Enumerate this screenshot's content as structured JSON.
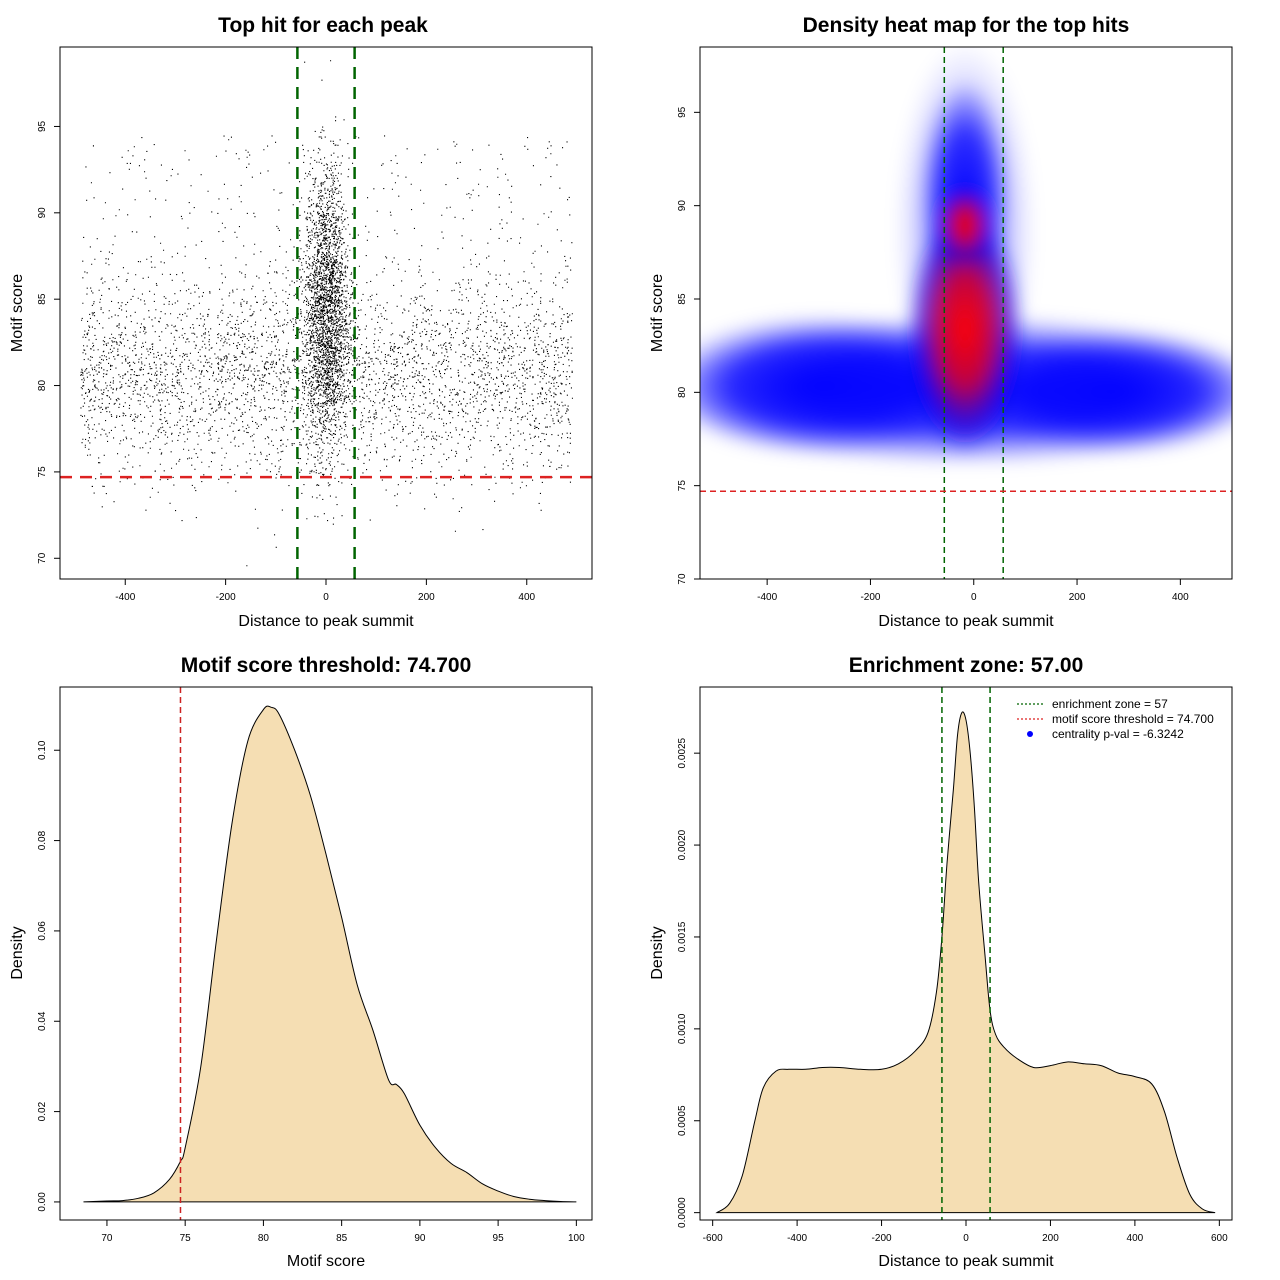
{
  "chart_data": [
    {
      "type": "scatter",
      "title": "Top hit for each peak",
      "xlabel": "Distance to peak summit",
      "ylabel": "Motif score",
      "xlim": [
        -530,
        530
      ],
      "ylim": [
        68.8,
        99.6
      ],
      "xticks": [
        -400,
        -200,
        0,
        200,
        400
      ],
      "yticks": [
        70,
        75,
        80,
        85,
        90,
        95
      ],
      "xtick_labels": [
        "-400",
        "-200",
        "0",
        "200",
        "400"
      ],
      "ytick_labels": [
        "70",
        "75",
        "80",
        "85",
        "90",
        "95"
      ],
      "hline": 74.7,
      "vlines": [
        -57,
        57
      ],
      "hline_color": "#dd2222",
      "vline_color": "#006400",
      "point_color": "#000000",
      "background_cloud": {
        "x_range": [
          -490,
          490
        ],
        "y_center": 80.5,
        "y_sd": 2.9,
        "n": 11000
      },
      "central_cluster": {
        "x_center": 0,
        "x_sd": 22,
        "y_center": 84.5,
        "y_sd": 4.0,
        "n": 2600
      }
    },
    {
      "type": "heatmap",
      "title": "Density heat map for the top hits",
      "xlabel": "Distance to peak summit",
      "ylabel": "Motif score",
      "xlim": [
        -530,
        500
      ],
      "ylim": [
        70,
        98.5
      ],
      "xticks": [
        -400,
        -200,
        0,
        200,
        400
      ],
      "yticks": [
        70,
        75,
        80,
        85,
        90,
        95
      ],
      "xtick_labels": [
        "-400",
        "-200",
        "0",
        "200",
        "400"
      ],
      "ytick_labels": [
        "70",
        "75",
        "80",
        "85",
        "90",
        "95"
      ],
      "hline": 74.7,
      "vlines": [
        -57,
        57
      ],
      "colormap": [
        "#ffffff",
        "#0000ff",
        "#ff0000"
      ],
      "peak": {
        "x": 0,
        "y": 82.7
      }
    },
    {
      "type": "area",
      "title": "Motif score threshold: 74.700",
      "xlabel": "Motif score",
      "ylabel": "Density",
      "xlim": [
        67,
        101
      ],
      "ylim": [
        -0.004,
        0.114
      ],
      "xticks": [
        70,
        75,
        80,
        85,
        90,
        95,
        100
      ],
      "yticks": [
        0,
        0.02,
        0.04,
        0.06,
        0.08,
        0.1
      ],
      "xtick_labels": [
        "70",
        "75",
        "80",
        "85",
        "90",
        "95",
        "100"
      ],
      "ytick_labels": [
        "0.00",
        "0.02",
        "0.04",
        "0.06",
        "0.08",
        "0.10"
      ],
      "vline": 74.7,
      "fill_color": "#f5deb3",
      "vline_color": "#cc2222",
      "x": [
        68.5,
        70,
        71,
        72,
        73,
        74,
        74.7,
        75,
        76,
        77,
        78,
        79,
        80,
        80.5,
        81,
        82,
        83,
        84,
        85,
        86,
        87,
        88,
        88.5,
        89,
        90,
        91,
        92,
        93,
        94,
        95,
        96,
        97,
        98,
        99,
        100
      ],
      "y": [
        0.0,
        0.0002,
        0.0003,
        0.0008,
        0.002,
        0.005,
        0.009,
        0.012,
        0.03,
        0.058,
        0.084,
        0.102,
        0.109,
        0.1095,
        0.108,
        0.1,
        0.09,
        0.077,
        0.063,
        0.048,
        0.038,
        0.027,
        0.026,
        0.024,
        0.017,
        0.012,
        0.0085,
        0.0065,
        0.004,
        0.0024,
        0.0012,
        0.0006,
        0.0003,
        0.0001,
        0.0
      ]
    },
    {
      "type": "area",
      "title": "Enrichment zone: 57.00",
      "xlabel": "Distance to peak summit",
      "ylabel": "Density",
      "xlim": [
        -630,
        630
      ],
      "ylim": [
        -4e-05,
        0.00286
      ],
      "xticks": [
        -600,
        -400,
        -200,
        0,
        200,
        400,
        600
      ],
      "yticks": [
        0,
        0.0005,
        0.001,
        0.0015,
        0.002,
        0.0025
      ],
      "xtick_labels": [
        "-600",
        "-400",
        "-200",
        "0",
        "200",
        "400",
        "600"
      ],
      "ytick_labels": [
        "0.0000",
        "0.0005",
        "0.0010",
        "0.0015",
        "0.0020",
        "0.0025"
      ],
      "vlines": [
        -57,
        57
      ],
      "fill_color": "#f5deb3",
      "vline_color": "#006400",
      "legend": [
        {
          "label": "enrichment zone = 57",
          "color": "#006400",
          "kind": "line"
        },
        {
          "label": "motif score threshold = 74.700",
          "color": "#dd2222",
          "kind": "line"
        },
        {
          "label": "centrality p-val = -6.3242",
          "color": "#0000ff",
          "kind": "point"
        }
      ],
      "legend_position": "top-right",
      "x": [
        -590,
        -560,
        -530,
        -500,
        -480,
        -450,
        -420,
        -380,
        -340,
        -300,
        -250,
        -200,
        -160,
        -120,
        -90,
        -70,
        -57,
        -45,
        -30,
        -20,
        -10,
        0,
        10,
        20,
        30,
        45,
        57,
        70,
        90,
        120,
        160,
        200,
        240,
        280,
        320,
        360,
        400,
        440,
        470,
        500,
        530,
        560,
        590
      ],
      "y": [
        0.0,
        5e-05,
        0.0002,
        0.0005,
        0.00068,
        0.00077,
        0.00078,
        0.00078,
        0.00079,
        0.00079,
        0.00078,
        0.00078,
        0.00081,
        0.00088,
        0.00098,
        0.0012,
        0.0015,
        0.0019,
        0.0023,
        0.0026,
        0.00272,
        0.00268,
        0.0025,
        0.0022,
        0.0018,
        0.0014,
        0.0011,
        0.00097,
        0.0009,
        0.00084,
        0.00079,
        0.0008,
        0.00082,
        0.00081,
        0.0008,
        0.00076,
        0.00074,
        0.0007,
        0.00055,
        0.0003,
        0.0001,
        2e-05,
        0.0
      ]
    }
  ]
}
